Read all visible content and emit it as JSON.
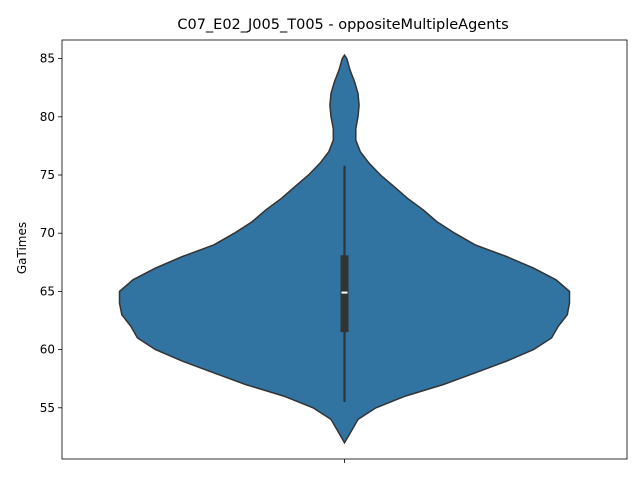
{
  "chart_data": {
    "type": "violin",
    "title": "C07_E02_J005_T005 - oppositeMultipleAgents",
    "xlabel": "",
    "ylabel": "GaTimes",
    "ylim": [
      50.6,
      86.6
    ],
    "yticks": [
      55,
      60,
      65,
      70,
      75,
      80,
      85
    ],
    "categories": [
      ""
    ],
    "grid": false,
    "legend": "none",
    "colors": {
      "body": "#3274a1",
      "outline": "#333333",
      "box": "#333333",
      "median": "#ffffff"
    },
    "series": [
      {
        "values_summary": {
          "min": 55.5,
          "q1": 61.5,
          "median": 64.9,
          "q3": 68.1,
          "max": 75.8
        },
        "kde_extent": [
          52.0,
          85.3
        ],
        "density_profile": [
          [
            52.0,
            0.0
          ],
          [
            53.0,
            0.03
          ],
          [
            54.0,
            0.06
          ],
          [
            55.0,
            0.14
          ],
          [
            56.0,
            0.27
          ],
          [
            57.0,
            0.44
          ],
          [
            58.0,
            0.58
          ],
          [
            59.0,
            0.72
          ],
          [
            60.0,
            0.84
          ],
          [
            61.0,
            0.92
          ],
          [
            62.0,
            0.95
          ],
          [
            63.0,
            0.99
          ],
          [
            64.0,
            1.0
          ],
          [
            65.0,
            1.0
          ],
          [
            66.0,
            0.94
          ],
          [
            67.0,
            0.84
          ],
          [
            68.0,
            0.72
          ],
          [
            69.0,
            0.58
          ],
          [
            70.0,
            0.49
          ],
          [
            71.0,
            0.41
          ],
          [
            72.0,
            0.35
          ],
          [
            73.0,
            0.28
          ],
          [
            74.0,
            0.22
          ],
          [
            75.0,
            0.16
          ],
          [
            76.0,
            0.11
          ],
          [
            77.0,
            0.07
          ],
          [
            78.0,
            0.05
          ],
          [
            79.0,
            0.05
          ],
          [
            80.0,
            0.06
          ],
          [
            81.0,
            0.065
          ],
          [
            82.0,
            0.06
          ],
          [
            83.0,
            0.045
          ],
          [
            84.0,
            0.025
          ],
          [
            85.0,
            0.01
          ],
          [
            85.3,
            0.0
          ]
        ]
      }
    ]
  }
}
